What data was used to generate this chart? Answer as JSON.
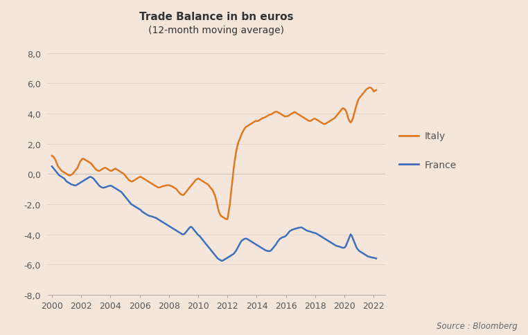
{
  "title": "Trade Balance in bn euros",
  "subtitle": "(12-month moving average)",
  "source": "Source : Bloomberg",
  "background_color": "#f5e6dc",
  "italy_color": "#e07820",
  "france_color": "#3d6fba",
  "zero_line_color": "#c8bdb5",
  "ylim": [
    -8.0,
    8.0
  ],
  "yticks": [
    -8.0,
    -6.0,
    -4.0,
    -2.0,
    0.0,
    2.0,
    4.0,
    6.0,
    8.0
  ],
  "xlim_start": 1999.7,
  "xlim_end": 2022.8,
  "xticks": [
    2000,
    2002,
    2004,
    2006,
    2008,
    2010,
    2012,
    2014,
    2016,
    2018,
    2020,
    2022
  ],
  "italy_x": [
    2000.0,
    2000.083,
    2000.167,
    2000.25,
    2000.333,
    2000.417,
    2000.5,
    2000.583,
    2000.667,
    2000.75,
    2000.833,
    2000.917,
    2001.0,
    2001.083,
    2001.167,
    2001.25,
    2001.333,
    2001.417,
    2001.5,
    2001.583,
    2001.667,
    2001.75,
    2001.833,
    2001.917,
    2002.0,
    2002.083,
    2002.167,
    2002.25,
    2002.333,
    2002.417,
    2002.5,
    2002.583,
    2002.667,
    2002.75,
    2002.833,
    2002.917,
    2003.0,
    2003.083,
    2003.167,
    2003.25,
    2003.333,
    2003.417,
    2003.5,
    2003.583,
    2003.667,
    2003.75,
    2003.833,
    2003.917,
    2004.0,
    2004.083,
    2004.167,
    2004.25,
    2004.333,
    2004.417,
    2004.5,
    2004.583,
    2004.667,
    2004.75,
    2004.833,
    2004.917,
    2005.0,
    2005.083,
    2005.167,
    2005.25,
    2005.333,
    2005.417,
    2005.5,
    2005.583,
    2005.667,
    2005.75,
    2005.833,
    2005.917,
    2006.0,
    2006.083,
    2006.167,
    2006.25,
    2006.333,
    2006.417,
    2006.5,
    2006.583,
    2006.667,
    2006.75,
    2006.833,
    2006.917,
    2007.0,
    2007.083,
    2007.167,
    2007.25,
    2007.333,
    2007.417,
    2007.5,
    2007.583,
    2007.667,
    2007.75,
    2007.833,
    2007.917,
    2008.0,
    2008.083,
    2008.167,
    2008.25,
    2008.333,
    2008.417,
    2008.5,
    2008.583,
    2008.667,
    2008.75,
    2008.833,
    2008.917,
    2009.0,
    2009.083,
    2009.167,
    2009.25,
    2009.333,
    2009.417,
    2009.5,
    2009.583,
    2009.667,
    2009.75,
    2009.833,
    2009.917,
    2010.0,
    2010.083,
    2010.167,
    2010.25,
    2010.333,
    2010.417,
    2010.5,
    2010.583,
    2010.667,
    2010.75,
    2010.833,
    2010.917,
    2011.0,
    2011.083,
    2011.167,
    2011.25,
    2011.333,
    2011.417,
    2011.5,
    2011.583,
    2011.667,
    2011.75,
    2011.833,
    2011.917,
    2012.0,
    2012.083,
    2012.167,
    2012.25,
    2012.333,
    2012.417,
    2012.5,
    2012.583,
    2012.667,
    2012.75,
    2012.833,
    2012.917,
    2013.0,
    2013.083,
    2013.167,
    2013.25,
    2013.333,
    2013.417,
    2013.5,
    2013.583,
    2013.667,
    2013.75,
    2013.833,
    2013.917,
    2014.0,
    2014.083,
    2014.167,
    2014.25,
    2014.333,
    2014.417,
    2014.5,
    2014.583,
    2014.667,
    2014.75,
    2014.833,
    2014.917,
    2015.0,
    2015.083,
    2015.167,
    2015.25,
    2015.333,
    2015.417,
    2015.5,
    2015.583,
    2015.667,
    2015.75,
    2015.833,
    2015.917,
    2016.0,
    2016.083,
    2016.167,
    2016.25,
    2016.333,
    2016.417,
    2016.5,
    2016.583,
    2016.667,
    2016.75,
    2016.833,
    2016.917,
    2017.0,
    2017.083,
    2017.167,
    2017.25,
    2017.333,
    2017.417,
    2017.5,
    2017.583,
    2017.667,
    2017.75,
    2017.833,
    2017.917,
    2018.0,
    2018.083,
    2018.167,
    2018.25,
    2018.333,
    2018.417,
    2018.5,
    2018.583,
    2018.667,
    2018.75,
    2018.833,
    2018.917,
    2019.0,
    2019.083,
    2019.167,
    2019.25,
    2019.333,
    2019.417,
    2019.5,
    2019.583,
    2019.667,
    2019.75,
    2019.833,
    2019.917,
    2020.0,
    2020.083,
    2020.167,
    2020.25,
    2020.333,
    2020.417,
    2020.5,
    2020.583,
    2020.667,
    2020.75,
    2020.833,
    2020.917,
    2021.0,
    2021.083,
    2021.167,
    2021.25,
    2021.333,
    2021.417,
    2021.5,
    2021.583,
    2021.667,
    2021.75,
    2021.833,
    2021.917,
    2022.0,
    2022.083,
    2022.167
  ],
  "italy_y": [
    1.2,
    1.15,
    1.05,
    0.9,
    0.7,
    0.5,
    0.4,
    0.3,
    0.2,
    0.15,
    0.1,
    0.05,
    0.0,
    -0.05,
    -0.1,
    -0.1,
    -0.05,
    0.0,
    0.1,
    0.2,
    0.3,
    0.4,
    0.6,
    0.8,
    0.9,
    1.0,
    1.0,
    0.95,
    0.9,
    0.85,
    0.8,
    0.75,
    0.7,
    0.6,
    0.5,
    0.4,
    0.3,
    0.25,
    0.2,
    0.2,
    0.25,
    0.3,
    0.35,
    0.4,
    0.4,
    0.35,
    0.3,
    0.25,
    0.2,
    0.2,
    0.25,
    0.3,
    0.35,
    0.3,
    0.25,
    0.2,
    0.15,
    0.1,
    0.05,
    0.0,
    -0.1,
    -0.2,
    -0.3,
    -0.4,
    -0.45,
    -0.5,
    -0.5,
    -0.45,
    -0.4,
    -0.35,
    -0.3,
    -0.25,
    -0.2,
    -0.2,
    -0.25,
    -0.3,
    -0.35,
    -0.4,
    -0.45,
    -0.5,
    -0.55,
    -0.6,
    -0.65,
    -0.7,
    -0.75,
    -0.8,
    -0.85,
    -0.9,
    -0.9,
    -0.88,
    -0.85,
    -0.82,
    -0.8,
    -0.78,
    -0.76,
    -0.75,
    -0.75,
    -0.78,
    -0.8,
    -0.85,
    -0.9,
    -0.95,
    -1.0,
    -1.1,
    -1.2,
    -1.3,
    -1.35,
    -1.4,
    -1.4,
    -1.3,
    -1.2,
    -1.1,
    -1.0,
    -0.9,
    -0.8,
    -0.7,
    -0.6,
    -0.5,
    -0.4,
    -0.35,
    -0.3,
    -0.35,
    -0.4,
    -0.45,
    -0.5,
    -0.55,
    -0.6,
    -0.65,
    -0.7,
    -0.8,
    -0.9,
    -1.0,
    -1.1,
    -1.3,
    -1.5,
    -1.8,
    -2.2,
    -2.5,
    -2.7,
    -2.8,
    -2.85,
    -2.9,
    -2.95,
    -3.0,
    -3.0,
    -2.5,
    -2.0,
    -1.2,
    -0.5,
    0.3,
    0.9,
    1.4,
    1.8,
    2.1,
    2.3,
    2.5,
    2.7,
    2.85,
    3.0,
    3.1,
    3.15,
    3.2,
    3.25,
    3.3,
    3.35,
    3.4,
    3.45,
    3.5,
    3.5,
    3.5,
    3.55,
    3.6,
    3.65,
    3.7,
    3.72,
    3.75,
    3.8,
    3.85,
    3.9,
    3.92,
    3.95,
    4.0,
    4.05,
    4.1,
    4.12,
    4.1,
    4.05,
    4.0,
    3.95,
    3.9,
    3.85,
    3.8,
    3.8,
    3.82,
    3.85,
    3.9,
    3.95,
    4.0,
    4.05,
    4.1,
    4.05,
    4.0,
    3.95,
    3.9,
    3.85,
    3.8,
    3.75,
    3.7,
    3.65,
    3.6,
    3.55,
    3.5,
    3.5,
    3.55,
    3.6,
    3.65,
    3.65,
    3.6,
    3.55,
    3.5,
    3.45,
    3.4,
    3.35,
    3.3,
    3.3,
    3.35,
    3.4,
    3.45,
    3.5,
    3.55,
    3.6,
    3.65,
    3.7,
    3.8,
    3.9,
    4.0,
    4.1,
    4.2,
    4.3,
    4.35,
    4.3,
    4.2,
    4.0,
    3.7,
    3.5,
    3.4,
    3.5,
    3.7,
    4.0,
    4.3,
    4.6,
    4.85,
    5.0,
    5.1,
    5.2,
    5.3,
    5.4,
    5.5,
    5.6,
    5.65,
    5.7,
    5.72,
    5.68,
    5.6,
    5.45,
    5.5,
    5.55
  ],
  "france_x": [
    2000.0,
    2000.083,
    2000.167,
    2000.25,
    2000.333,
    2000.417,
    2000.5,
    2000.583,
    2000.667,
    2000.75,
    2000.833,
    2000.917,
    2001.0,
    2001.083,
    2001.167,
    2001.25,
    2001.333,
    2001.417,
    2001.5,
    2001.583,
    2001.667,
    2001.75,
    2001.833,
    2001.917,
    2002.0,
    2002.083,
    2002.167,
    2002.25,
    2002.333,
    2002.417,
    2002.5,
    2002.583,
    2002.667,
    2002.75,
    2002.833,
    2002.917,
    2003.0,
    2003.083,
    2003.167,
    2003.25,
    2003.333,
    2003.417,
    2003.5,
    2003.583,
    2003.667,
    2003.75,
    2003.833,
    2003.917,
    2004.0,
    2004.083,
    2004.167,
    2004.25,
    2004.333,
    2004.417,
    2004.5,
    2004.583,
    2004.667,
    2004.75,
    2004.833,
    2004.917,
    2005.0,
    2005.083,
    2005.167,
    2005.25,
    2005.333,
    2005.417,
    2005.5,
    2005.583,
    2005.667,
    2005.75,
    2005.833,
    2005.917,
    2006.0,
    2006.083,
    2006.167,
    2006.25,
    2006.333,
    2006.417,
    2006.5,
    2006.583,
    2006.667,
    2006.75,
    2006.833,
    2006.917,
    2007.0,
    2007.083,
    2007.167,
    2007.25,
    2007.333,
    2007.417,
    2007.5,
    2007.583,
    2007.667,
    2007.75,
    2007.833,
    2007.917,
    2008.0,
    2008.083,
    2008.167,
    2008.25,
    2008.333,
    2008.417,
    2008.5,
    2008.583,
    2008.667,
    2008.75,
    2008.833,
    2008.917,
    2009.0,
    2009.083,
    2009.167,
    2009.25,
    2009.333,
    2009.417,
    2009.5,
    2009.583,
    2009.667,
    2009.75,
    2009.833,
    2009.917,
    2010.0,
    2010.083,
    2010.167,
    2010.25,
    2010.333,
    2010.417,
    2010.5,
    2010.583,
    2010.667,
    2010.75,
    2010.833,
    2010.917,
    2011.0,
    2011.083,
    2011.167,
    2011.25,
    2011.333,
    2011.417,
    2011.5,
    2011.583,
    2011.667,
    2011.75,
    2011.833,
    2011.917,
    2012.0,
    2012.083,
    2012.167,
    2012.25,
    2012.333,
    2012.417,
    2012.5,
    2012.583,
    2012.667,
    2012.75,
    2012.833,
    2012.917,
    2013.0,
    2013.083,
    2013.167,
    2013.25,
    2013.333,
    2013.417,
    2013.5,
    2013.583,
    2013.667,
    2013.75,
    2013.833,
    2013.917,
    2014.0,
    2014.083,
    2014.167,
    2014.25,
    2014.333,
    2014.417,
    2014.5,
    2014.583,
    2014.667,
    2014.75,
    2014.833,
    2014.917,
    2015.0,
    2015.083,
    2015.167,
    2015.25,
    2015.333,
    2015.417,
    2015.5,
    2015.583,
    2015.667,
    2015.75,
    2015.833,
    2015.917,
    2016.0,
    2016.083,
    2016.167,
    2016.25,
    2016.333,
    2016.417,
    2016.5,
    2016.583,
    2016.667,
    2016.75,
    2016.833,
    2016.917,
    2017.0,
    2017.083,
    2017.167,
    2017.25,
    2017.333,
    2017.417,
    2017.5,
    2017.583,
    2017.667,
    2017.75,
    2017.833,
    2017.917,
    2018.0,
    2018.083,
    2018.167,
    2018.25,
    2018.333,
    2018.417,
    2018.5,
    2018.583,
    2018.667,
    2018.75,
    2018.833,
    2018.917,
    2019.0,
    2019.083,
    2019.167,
    2019.25,
    2019.333,
    2019.417,
    2019.5,
    2019.583,
    2019.667,
    2019.75,
    2019.833,
    2019.917,
    2020.0,
    2020.083,
    2020.167,
    2020.25,
    2020.333,
    2020.417,
    2020.5,
    2020.583,
    2020.667,
    2020.75,
    2020.833,
    2020.917,
    2021.0,
    2021.083,
    2021.167,
    2021.25,
    2021.333,
    2021.417,
    2021.5,
    2021.583,
    2021.667,
    2021.75,
    2021.833,
    2021.917,
    2022.0,
    2022.083,
    2022.167
  ],
  "france_y": [
    0.5,
    0.4,
    0.3,
    0.2,
    0.1,
    0.0,
    -0.1,
    -0.15,
    -0.2,
    -0.25,
    -0.3,
    -0.4,
    -0.5,
    -0.55,
    -0.6,
    -0.65,
    -0.7,
    -0.72,
    -0.75,
    -0.77,
    -0.75,
    -0.7,
    -0.65,
    -0.6,
    -0.55,
    -0.5,
    -0.45,
    -0.4,
    -0.35,
    -0.3,
    -0.25,
    -0.2,
    -0.2,
    -0.25,
    -0.3,
    -0.4,
    -0.5,
    -0.6,
    -0.7,
    -0.8,
    -0.85,
    -0.9,
    -0.92,
    -0.9,
    -0.88,
    -0.85,
    -0.82,
    -0.8,
    -0.78,
    -0.8,
    -0.85,
    -0.9,
    -0.95,
    -1.0,
    -1.05,
    -1.1,
    -1.15,
    -1.2,
    -1.3,
    -1.4,
    -1.5,
    -1.6,
    -1.7,
    -1.8,
    -1.9,
    -2.0,
    -2.05,
    -2.1,
    -2.15,
    -2.2,
    -2.25,
    -2.3,
    -2.35,
    -2.4,
    -2.5,
    -2.55,
    -2.6,
    -2.65,
    -2.7,
    -2.75,
    -2.78,
    -2.8,
    -2.82,
    -2.85,
    -2.88,
    -2.9,
    -2.95,
    -3.0,
    -3.05,
    -3.1,
    -3.15,
    -3.2,
    -3.25,
    -3.3,
    -3.35,
    -3.4,
    -3.45,
    -3.5,
    -3.55,
    -3.6,
    -3.65,
    -3.7,
    -3.75,
    -3.8,
    -3.85,
    -3.9,
    -3.95,
    -4.0,
    -4.0,
    -3.95,
    -3.85,
    -3.75,
    -3.65,
    -3.55,
    -3.5,
    -3.55,
    -3.65,
    -3.75,
    -3.85,
    -3.95,
    -4.05,
    -4.1,
    -4.2,
    -4.3,
    -4.4,
    -4.5,
    -4.6,
    -4.7,
    -4.8,
    -4.9,
    -5.0,
    -5.1,
    -5.2,
    -5.3,
    -5.4,
    -5.5,
    -5.6,
    -5.65,
    -5.7,
    -5.75,
    -5.75,
    -5.7,
    -5.65,
    -5.6,
    -5.55,
    -5.5,
    -5.45,
    -5.4,
    -5.35,
    -5.3,
    -5.2,
    -5.1,
    -4.95,
    -4.8,
    -4.65,
    -4.5,
    -4.4,
    -4.35,
    -4.3,
    -4.28,
    -4.3,
    -4.35,
    -4.4,
    -4.45,
    -4.5,
    -4.55,
    -4.6,
    -4.65,
    -4.7,
    -4.75,
    -4.8,
    -4.85,
    -4.9,
    -4.95,
    -5.0,
    -5.05,
    -5.08,
    -5.1,
    -5.12,
    -5.1,
    -5.05,
    -4.95,
    -4.85,
    -4.75,
    -4.65,
    -4.5,
    -4.4,
    -4.3,
    -4.25,
    -4.2,
    -4.18,
    -4.15,
    -4.1,
    -4.0,
    -3.9,
    -3.8,
    -3.75,
    -3.7,
    -3.68,
    -3.65,
    -3.62,
    -3.6,
    -3.58,
    -3.56,
    -3.55,
    -3.55,
    -3.6,
    -3.65,
    -3.7,
    -3.75,
    -3.78,
    -3.8,
    -3.82,
    -3.85,
    -3.88,
    -3.9,
    -3.92,
    -3.95,
    -4.0,
    -4.05,
    -4.1,
    -4.15,
    -4.2,
    -4.25,
    -4.3,
    -4.35,
    -4.4,
    -4.45,
    -4.5,
    -4.55,
    -4.6,
    -4.65,
    -4.7,
    -4.75,
    -4.78,
    -4.8,
    -4.82,
    -4.85,
    -4.88,
    -4.9,
    -4.88,
    -4.8,
    -4.6,
    -4.4,
    -4.2,
    -4.0,
    -4.1,
    -4.3,
    -4.5,
    -4.7,
    -4.9,
    -5.0,
    -5.1,
    -5.15,
    -5.2,
    -5.25,
    -5.3,
    -5.35,
    -5.4,
    -5.45,
    -5.48,
    -5.5,
    -5.52,
    -5.55,
    -5.55,
    -5.58,
    -5.6
  ]
}
